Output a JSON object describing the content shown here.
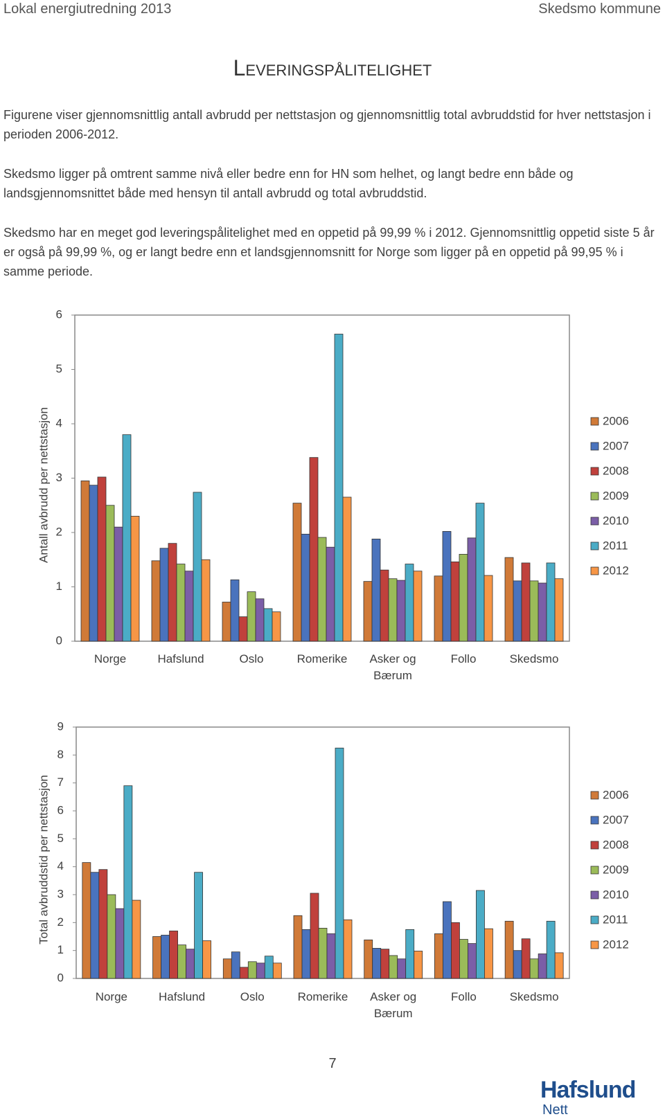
{
  "header": {
    "left": "Lokal energiutredning 2013",
    "right": "Skedsmo kommune"
  },
  "title": "Leveringspålitelighet",
  "paragraphs": [
    "Figurene viser gjennomsnittlig antall avbrudd per nettstasjon og gjennomsnittlig total avbruddstid for hver nettstasjon i perioden 2006-2012.",
    "Skedsmo ligger på omtrent samme nivå eller bedre enn for HN som helhet, og langt bedre enn både og landsgjennomsnittet både med hensyn til antall avbrudd og total avbruddstid.",
    "Skedsmo har en meget god leveringspålitelighet med en oppetid på 99,99 % i 2012. Gjennomsnittlig oppetid siste 5 år er også på 99,99 %, og er langt bedre enn et landsgjennomsnitt for Norge som ligger på en oppetid på 99,95 % i samme periode."
  ],
  "chart_data": [
    {
      "type": "bar",
      "y_label": "Antall avbrudd per nettstasjon",
      "categories": [
        "Norge",
        "Hafslund",
        "Oslo",
        "Romerike",
        "Asker og Bærum",
        "Follo",
        "Skedsmo"
      ],
      "ylim": [
        0,
        6
      ],
      "yticks": [
        0,
        1,
        2,
        3,
        4,
        5,
        6
      ],
      "legend": "right",
      "series": [
        {
          "name": "2006",
          "color": "#d07a38",
          "values": [
            2.95,
            1.48,
            0.72,
            2.54,
            1.1,
            1.2,
            1.54
          ]
        },
        {
          "name": "2007",
          "color": "#4a73bd",
          "values": [
            2.87,
            1.71,
            1.13,
            1.97,
            1.88,
            2.02,
            1.11
          ]
        },
        {
          "name": "2008",
          "color": "#c0413c",
          "values": [
            3.02,
            1.8,
            0.45,
            3.38,
            1.31,
            1.46,
            1.44
          ]
        },
        {
          "name": "2009",
          "color": "#9bbb59",
          "values": [
            2.5,
            1.42,
            0.91,
            1.91,
            1.15,
            1.6,
            1.11
          ]
        },
        {
          "name": "2010",
          "color": "#7b5ea7",
          "values": [
            2.1,
            1.29,
            0.78,
            1.73,
            1.12,
            1.9,
            1.07
          ]
        },
        {
          "name": "2011",
          "color": "#4bacc6",
          "values": [
            3.8,
            2.74,
            0.6,
            5.65,
            1.42,
            2.54,
            1.44
          ]
        },
        {
          "name": "2012",
          "color": "#f79646",
          "values": [
            2.3,
            1.5,
            0.54,
            2.65,
            1.29,
            1.21,
            1.15
          ]
        }
      ]
    },
    {
      "type": "bar",
      "y_label": "Total avbruddstid per nettstasjon",
      "categories": [
        "Norge",
        "Hafslund",
        "Oslo",
        "Romerike",
        "Asker og Bærum",
        "Follo",
        "Skedsmo"
      ],
      "ylim": [
        0,
        9
      ],
      "yticks": [
        0,
        1,
        2,
        3,
        4,
        5,
        6,
        7,
        8,
        9
      ],
      "legend": "right",
      "series": [
        {
          "name": "2006",
          "color": "#d07a38",
          "values": [
            4.15,
            1.5,
            0.7,
            2.25,
            1.38,
            1.6,
            2.05
          ]
        },
        {
          "name": "2007",
          "color": "#4a73bd",
          "values": [
            3.8,
            1.55,
            0.95,
            1.75,
            1.08,
            2.75,
            1.0
          ]
        },
        {
          "name": "2008",
          "color": "#c0413c",
          "values": [
            3.9,
            1.7,
            0.4,
            3.05,
            1.05,
            2.0,
            1.42
          ]
        },
        {
          "name": "2009",
          "color": "#9bbb59",
          "values": [
            3.0,
            1.2,
            0.6,
            1.8,
            0.82,
            1.4,
            0.7
          ]
        },
        {
          "name": "2010",
          "color": "#7b5ea7",
          "values": [
            2.5,
            1.05,
            0.55,
            1.6,
            0.7,
            1.25,
            0.88
          ]
        },
        {
          "name": "2011",
          "color": "#4bacc6",
          "values": [
            6.9,
            3.8,
            0.8,
            8.25,
            1.75,
            3.15,
            2.05
          ]
        },
        {
          "name": "2012",
          "color": "#f79646",
          "values": [
            2.8,
            1.35,
            0.55,
            2.1,
            0.98,
            1.78,
            0.92
          ]
        }
      ]
    }
  ],
  "page_number": "7",
  "logo": {
    "name": "Hafslund",
    "sub": "Nett"
  }
}
